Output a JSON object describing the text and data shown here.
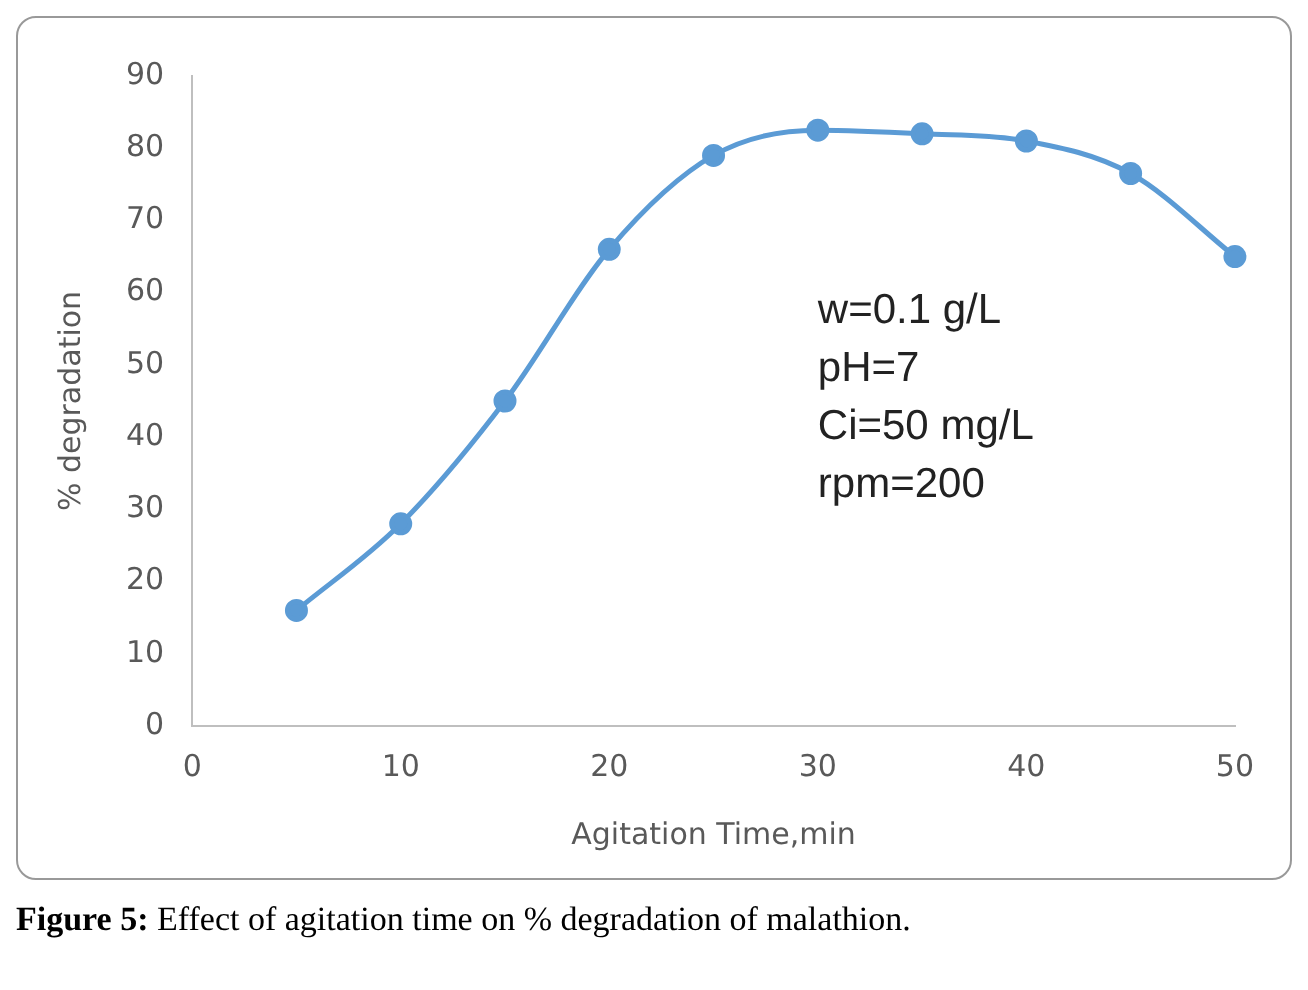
{
  "chart_data": {
    "type": "line",
    "xlabel": "Agitation Time,min",
    "ylabel": "% degradation",
    "x": [
      5,
      10,
      15,
      20,
      25,
      30,
      35,
      40,
      45,
      50
    ],
    "series": [
      {
        "color": "#5b9bd5",
        "values": [
          16,
          28,
          45,
          66,
          79,
          82.5,
          82,
          81,
          76.5,
          65
        ]
      }
    ],
    "xlim": [
      0,
      50
    ],
    "xticks": [
      0,
      10,
      20,
      30,
      40,
      50
    ],
    "ylim": [
      0,
      90
    ],
    "yticks": [
      0,
      10,
      20,
      30,
      40,
      50,
      60,
      70,
      80,
      90
    ],
    "grid": false,
    "legend": false,
    "marker": "circle",
    "line_style": "solid",
    "annotations": [
      "w=0.1 g/L\npH=7\nCi=50 mg/L\nrpm=200",
      "Figure 5: Effect of agitation time on % degradation of malathion."
    ]
  }
}
